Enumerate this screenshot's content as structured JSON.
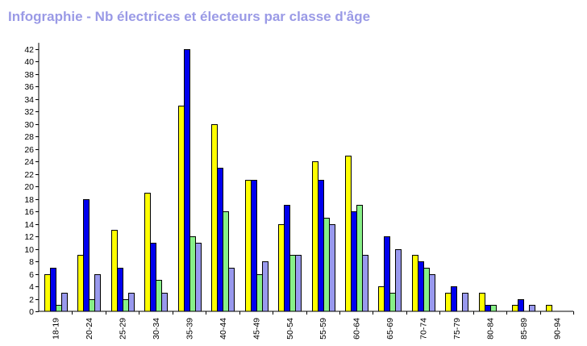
{
  "chart_data": {
    "type": "bar",
    "title": "Infographie - Nb électrices et électeurs par classe d'âge",
    "xlabel": "",
    "ylabel": "",
    "ylim": [
      0,
      43
    ],
    "yticks": [
      0,
      2,
      4,
      6,
      8,
      10,
      12,
      14,
      16,
      18,
      20,
      22,
      24,
      26,
      28,
      30,
      32,
      34,
      36,
      38,
      40,
      42
    ],
    "categories": [
      "18-19",
      "20-24",
      "25-29",
      "30-34",
      "35-39",
      "40-44",
      "45-49",
      "50-54",
      "55-59",
      "60-64",
      "65-69",
      "70-74",
      "75-79",
      "80-84",
      "85-89",
      "90-94"
    ],
    "series": [
      {
        "color": "#ffff00",
        "values": [
          6,
          9,
          13,
          19,
          33,
          30,
          21,
          14,
          24,
          25,
          4,
          9,
          3,
          3,
          1,
          1
        ]
      },
      {
        "color": "#0000ee",
        "values": [
          7,
          18,
          7,
          11,
          42,
          23,
          21,
          17,
          21,
          16,
          12,
          8,
          4,
          1,
          2,
          0
        ]
      },
      {
        "color": "#88f088",
        "values": [
          1,
          2,
          2,
          5,
          12,
          16,
          6,
          9,
          15,
          17,
          3,
          7,
          0,
          1,
          0,
          0
        ]
      },
      {
        "color": "#9999ee",
        "values": [
          3,
          6,
          3,
          3,
          11,
          7,
          8,
          9,
          14,
          9,
          10,
          6,
          3,
          0,
          1,
          0
        ]
      }
    ],
    "grid": false,
    "legend": "none"
  }
}
